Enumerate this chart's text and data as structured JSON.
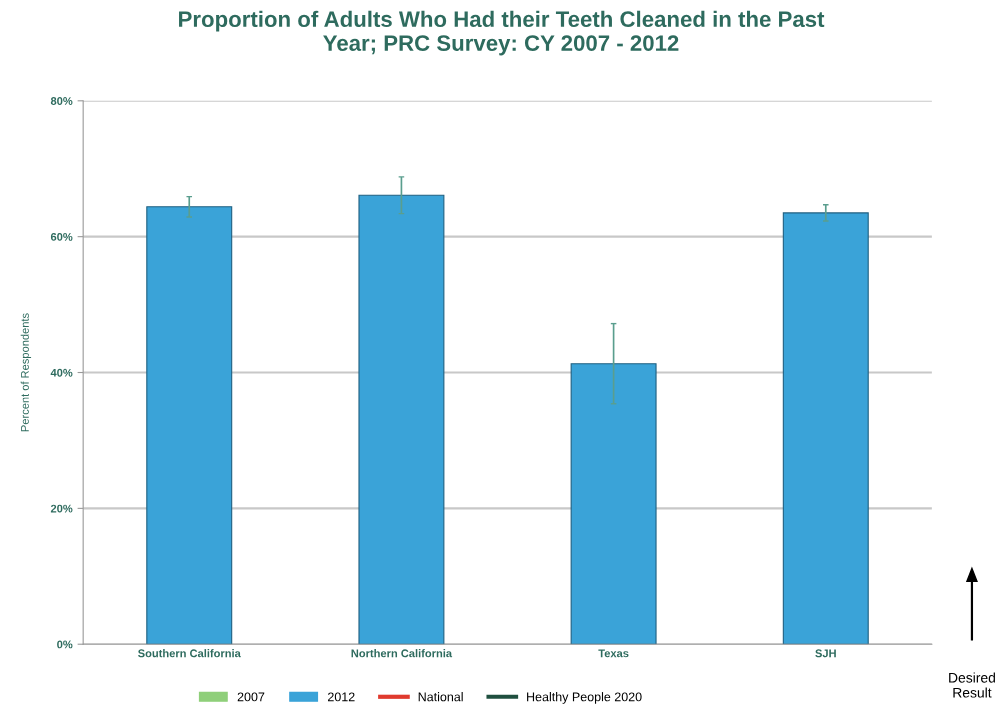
{
  "chart_data": {
    "type": "bar",
    "title": "Proportion of Adults Who Had their Teeth Cleaned in the Past\nYear; PRC Survey: CY 2007 - 2012",
    "ylabel": "Percent of Respondents",
    "categories": [
      "Southern California",
      "Northern California",
      "Texas",
      "SJH"
    ],
    "series": [
      {
        "name": "2007",
        "color": "#8fcf7a",
        "values": [
          null,
          null,
          null,
          null
        ]
      },
      {
        "name": "2012",
        "color": "#3aa3d8",
        "values": [
          64.4,
          66.1,
          41.3,
          63.5
        ],
        "errors": [
          1.5,
          2.7,
          5.9,
          1.2
        ]
      },
      {
        "name": "National",
        "type": "line",
        "color": "#e03a2e",
        "values": [
          null,
          null,
          null,
          null
        ]
      },
      {
        "name": "Healthy People 2020",
        "type": "line",
        "color": "#1f4f3f",
        "values": [
          null,
          null,
          null,
          null
        ]
      }
    ],
    "ylim": [
      0,
      80
    ],
    "yticks": [
      {
        "value": 0,
        "label": "0%"
      },
      {
        "value": 20,
        "label": "20%"
      },
      {
        "value": 40,
        "label": "40%"
      },
      {
        "value": 60,
        "label": "60%"
      },
      {
        "value": 80,
        "label": "80%"
      }
    ],
    "grid": "y",
    "legend": "bottom",
    "annotations": [
      "Desired\nResult"
    ]
  }
}
